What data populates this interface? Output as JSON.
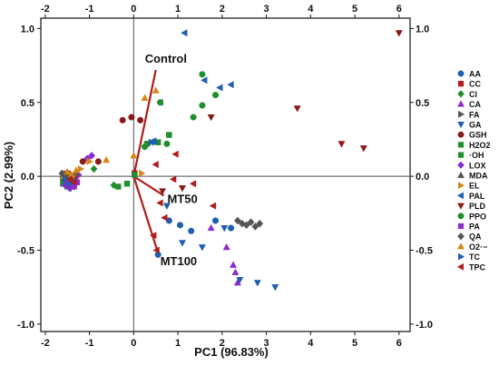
{
  "chart_data": {
    "type": "scatter",
    "title": "",
    "xlabel": "PC1 (96.83%)",
    "ylabel": "PC2 (2.99%)",
    "xlim": [
      -2.1,
      6.25
    ],
    "ylim": [
      -1.05,
      1.07
    ],
    "top_xlim": [
      -2,
      6
    ],
    "x_ticks": [
      -2,
      -1,
      0,
      1,
      2,
      3,
      4,
      5,
      6
    ],
    "y_ticks": [
      -1.0,
      -0.5,
      0.0,
      0.5,
      1.0
    ],
    "tick_labels_x": [
      "-2",
      "-1",
      "0",
      "1",
      "2",
      "3",
      "4",
      "5",
      "6"
    ],
    "tick_labels_y": [
      "-1.0",
      "-0.5",
      "0.0",
      "0.5",
      "1.0"
    ],
    "grid": false,
    "legend_position": "right",
    "loading_vectors": [
      {
        "label": "Control",
        "x": 0.5,
        "y": 0.72,
        "color": "#b01c1c"
      },
      {
        "label": "MT50",
        "x": 0.68,
        "y": -0.13,
        "color": "#b01c1c"
      },
      {
        "label": "MT100",
        "x": 0.52,
        "y": -0.49,
        "color": "#b01c1c"
      }
    ],
    "vector_labels": [
      "Control",
      "MT50",
      "MT100"
    ],
    "series": [
      {
        "name": "AA",
        "color": "#1f5fb0",
        "marker": "circle",
        "points": [
          [
            -1.55,
            -0.02
          ],
          [
            -1.45,
            -0.04
          ],
          [
            -1.35,
            -0.03
          ],
          [
            0.8,
            -0.3
          ],
          [
            1.05,
            -0.33
          ],
          [
            1.3,
            -0.37
          ],
          [
            1.85,
            -0.3
          ],
          [
            2.2,
            -0.35
          ],
          [
            0.55,
            -0.53
          ]
        ]
      },
      {
        "name": "CC",
        "color": "#b01c1c",
        "marker": "square",
        "points": [
          [
            -1.5,
            -0.03
          ],
          [
            -1.42,
            -0.05
          ],
          [
            -1.33,
            -0.02
          ],
          [
            0.02,
            0.02
          ]
        ]
      },
      {
        "name": "Cl",
        "color": "#1f8f2c",
        "marker": "diamond",
        "points": [
          [
            -1.6,
            -0.02
          ],
          [
            -1.48,
            -0.04
          ],
          [
            -1.38,
            -0.06
          ],
          [
            -0.9,
            0.05
          ],
          [
            -0.45,
            -0.06
          ]
        ]
      },
      {
        "name": "CA",
        "color": "#8a2bd0",
        "marker": "triangle-up",
        "points": [
          [
            -1.45,
            -0.05
          ],
          [
            -1.35,
            -0.07
          ],
          [
            1.75,
            -0.35
          ],
          [
            2.1,
            -0.48
          ],
          [
            2.25,
            -0.6
          ],
          [
            2.3,
            -0.65
          ],
          [
            2.35,
            -0.72
          ]
        ]
      },
      {
        "name": "FA",
        "color": "#555555",
        "marker": "triangle-right",
        "points": [
          [
            -1.5,
            -0.02
          ],
          [
            -1.4,
            -0.04
          ],
          [
            -1.3,
            -0.03
          ]
        ]
      },
      {
        "name": "GA",
        "color": "#1f5fb0",
        "marker": "triangle-down",
        "points": [
          [
            -1.52,
            -0.06
          ],
          [
            -1.42,
            -0.08
          ],
          [
            1.1,
            -0.45
          ],
          [
            1.55,
            -0.48
          ],
          [
            2.05,
            -0.35
          ],
          [
            2.4,
            -0.7
          ],
          [
            2.8,
            -0.72
          ],
          [
            3.2,
            -0.75
          ],
          [
            0.75,
            -0.2
          ]
        ]
      },
      {
        "name": "GSH",
        "color": "#8b1a1a",
        "marker": "circle",
        "points": [
          [
            -1.58,
            -0.03
          ],
          [
            -1.46,
            -0.05
          ],
          [
            -0.25,
            0.38
          ],
          [
            -0.05,
            0.4
          ],
          [
            0.15,
            0.38
          ],
          [
            -0.8,
            0.1
          ],
          [
            -1.15,
            0.1
          ]
        ]
      },
      {
        "name": "H2O2",
        "color": "#1f8f2c",
        "marker": "square",
        "points": [
          [
            -1.55,
            -0.04
          ],
          [
            -1.45,
            -0.06
          ],
          [
            -1.35,
            -0.05
          ],
          [
            -0.35,
            -0.07
          ],
          [
            0.3,
            0.22
          ],
          [
            0.55,
            0.23
          ],
          [
            0.8,
            0.28
          ],
          [
            0.02,
            0.01
          ]
        ]
      },
      {
        "name": "·OH",
        "color": "#1f8f2c",
        "marker": "square",
        "points": [
          [
            -1.6,
            -0.05
          ],
          [
            -1.5,
            -0.07
          ],
          [
            -1.4,
            -0.04
          ],
          [
            -0.15,
            -0.05
          ]
        ]
      },
      {
        "name": "LOX",
        "color": "#8a2bd0",
        "marker": "diamond",
        "points": [
          [
            -1.55,
            -0.06
          ],
          [
            -1.45,
            -0.08
          ],
          [
            -1.35,
            -0.07
          ],
          [
            -1.25,
            0.01
          ],
          [
            -1.05,
            0.12
          ],
          [
            -0.95,
            0.14
          ]
        ]
      },
      {
        "name": "MDA",
        "color": "#555555",
        "marker": "triangle-up",
        "points": [
          [
            -1.6,
            0.01
          ],
          [
            -1.5,
            -0.01
          ],
          [
            -1.4,
            0.0
          ],
          [
            -1.3,
            0.02
          ]
        ]
      },
      {
        "name": "EL",
        "color": "#d4871a",
        "marker": "triangle-right",
        "points": [
          [
            -1.58,
            0.0
          ],
          [
            -1.48,
            -0.02
          ],
          [
            -1.38,
            0.01
          ],
          [
            -1.2,
            0.05
          ],
          [
            -1.0,
            0.1
          ],
          [
            0.18,
            0.02
          ]
        ]
      },
      {
        "name": "PAL",
        "color": "#1f5fb0",
        "marker": "triangle-left",
        "points": [
          [
            -1.52,
            -0.01
          ],
          [
            -1.42,
            -0.03
          ],
          [
            1.15,
            0.97
          ],
          [
            1.6,
            0.65
          ],
          [
            1.95,
            0.6
          ],
          [
            2.2,
            0.62
          ],
          [
            0.6,
            0.5
          ],
          [
            0.45,
            0.24
          ]
        ]
      },
      {
        "name": "PLD",
        "color": "#8b1a1a",
        "marker": "triangle-down",
        "points": [
          [
            -1.5,
            0.02
          ],
          [
            -1.4,
            0.0
          ],
          [
            3.7,
            0.46
          ],
          [
            4.7,
            0.22
          ],
          [
            5.2,
            0.19
          ],
          [
            6.0,
            0.97
          ],
          [
            1.75,
            0.4
          ],
          [
            1.1,
            -0.08
          ],
          [
            0.65,
            -0.1
          ]
        ]
      },
      {
        "name": "PPO",
        "color": "#1f8f2c",
        "marker": "circle",
        "points": [
          [
            -1.55,
            0.01
          ],
          [
            -1.45,
            -0.01
          ],
          [
            1.55,
            0.69
          ],
          [
            1.55,
            0.48
          ],
          [
            1.35,
            0.4
          ],
          [
            1.85,
            0.55
          ],
          [
            0.6,
            0.5
          ],
          [
            0.75,
            0.22
          ],
          [
            0.25,
            0.2
          ]
        ]
      },
      {
        "name": "PA",
        "color": "#8a2bd0",
        "marker": "square",
        "points": [
          [
            -1.48,
            -0.03
          ],
          [
            -1.38,
            -0.05
          ],
          [
            -1.28,
            -0.04
          ]
        ]
      },
      {
        "name": "QA",
        "color": "#555555",
        "marker": "diamond",
        "points": [
          [
            -1.62,
            0.02
          ],
          [
            -1.52,
            0.0
          ],
          [
            -1.42,
            -0.01
          ],
          [
            2.35,
            -0.3
          ],
          [
            2.45,
            -0.32
          ],
          [
            2.55,
            -0.33
          ],
          [
            2.65,
            -0.31
          ],
          [
            2.75,
            -0.34
          ],
          [
            2.85,
            -0.32
          ]
        ]
      },
      {
        "name": "O2·−",
        "color": "#d4871a",
        "marker": "triangle-up",
        "points": [
          [
            -1.5,
            0.03
          ],
          [
            -1.4,
            0.01
          ],
          [
            -1.3,
            0.04
          ],
          [
            -0.62,
            0.11
          ],
          [
            0.0,
            0.14
          ],
          [
            0.5,
            0.58
          ],
          [
            0.25,
            0.53
          ]
        ]
      },
      {
        "name": "TC",
        "color": "#1f5fb0",
        "marker": "triangle-right",
        "points": [
          [
            -1.55,
            -0.02
          ],
          [
            -1.45,
            -0.05
          ],
          [
            0.4,
            0.23
          ],
          [
            0.48,
            0.23
          ]
        ]
      },
      {
        "name": "TPC",
        "color": "#b01c1c",
        "marker": "triangle-left",
        "points": [
          [
            -1.45,
            -0.02
          ],
          [
            -1.35,
            -0.04
          ],
          [
            0.5,
            0.08
          ],
          [
            0.95,
            0.15
          ],
          [
            0.9,
            -0.02
          ],
          [
            0.7,
            -0.28
          ],
          [
            0.6,
            -0.18
          ],
          [
            0.45,
            -0.4
          ],
          [
            0.52,
            -0.5
          ],
          [
            1.35,
            -0.05
          ],
          [
            1.8,
            -0.2
          ]
        ]
      }
    ]
  }
}
